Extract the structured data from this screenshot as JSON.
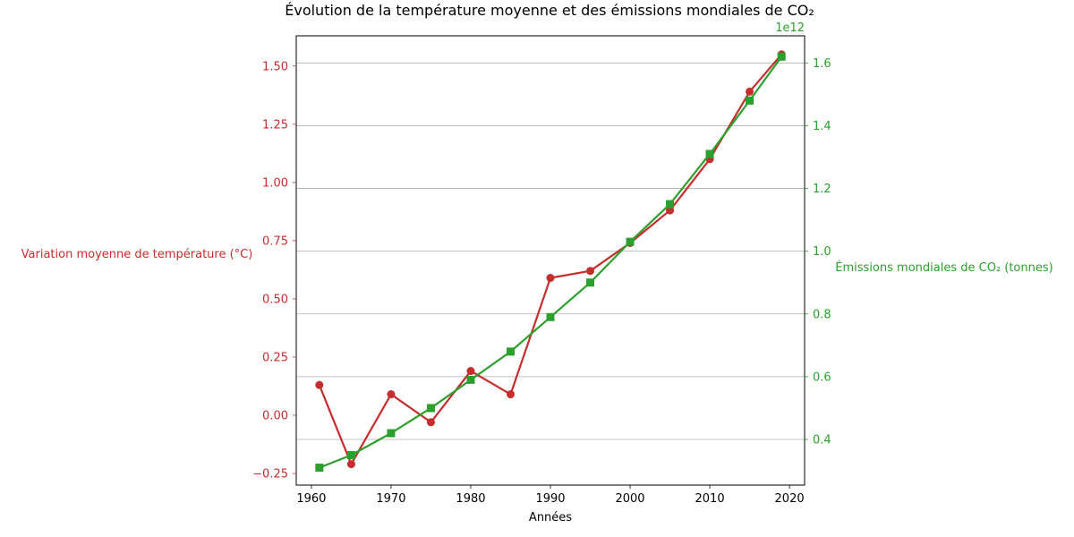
{
  "chart_data": {
    "type": "line",
    "title": "Évolution de la température moyenne et des émissions mondiales de CO₂",
    "xlabel": "Années",
    "ylabel": "Variation moyenne de température (°C)",
    "y2label": "Émissions mondiales de CO₂ (tonnes)",
    "y2_offset_text": "1e12",
    "x": [
      1961,
      1965,
      1970,
      1975,
      1980,
      1985,
      1990,
      1995,
      2000,
      2005,
      2010,
      2015,
      2019
    ],
    "xlim": [
      1958.1,
      2021.9
    ],
    "ylim": [
      -0.3,
      1.63
    ],
    "y2lim": [
      0.2545,
      1.6865
    ],
    "x_ticks": [
      1960,
      1970,
      1980,
      1990,
      2000,
      2010,
      2020
    ],
    "y_ticks": [
      -0.25,
      0.0,
      0.25,
      0.5,
      0.75,
      1.0,
      1.25,
      1.5
    ],
    "y_tick_labels": [
      "−0.25",
      "0.00",
      "0.25",
      "0.50",
      "0.75",
      "1.00",
      "1.25",
      "1.50"
    ],
    "y2_ticks": [
      0.4,
      0.6,
      0.8,
      1.0,
      1.2,
      1.4,
      1.6
    ],
    "y2_tick_labels": [
      "0.4",
      "0.6",
      "0.8",
      "1.0",
      "1.2",
      "1.4",
      "1.6"
    ],
    "grid": "horizontal (secondary axis)",
    "series": [
      {
        "axis": "left",
        "color": "#c62d2d",
        "marker": "circle",
        "values": [
          0.13,
          -0.21,
          0.09,
          -0.03,
          0.19,
          0.09,
          0.59,
          0.62,
          0.74,
          0.88,
          1.1,
          1.39,
          1.55
        ]
      },
      {
        "axis": "right",
        "color": "#2ca02c",
        "marker": "square",
        "values": [
          0.31,
          0.35,
          0.42,
          0.5,
          0.59,
          0.68,
          0.79,
          0.9,
          1.03,
          1.15,
          1.31,
          1.48,
          1.62
        ]
      }
    ]
  },
  "colors": {
    "temperature": "#c62d2d",
    "emissions": "#2ca02c",
    "grid": "#b0b0b0",
    "axis": "#000000"
  }
}
